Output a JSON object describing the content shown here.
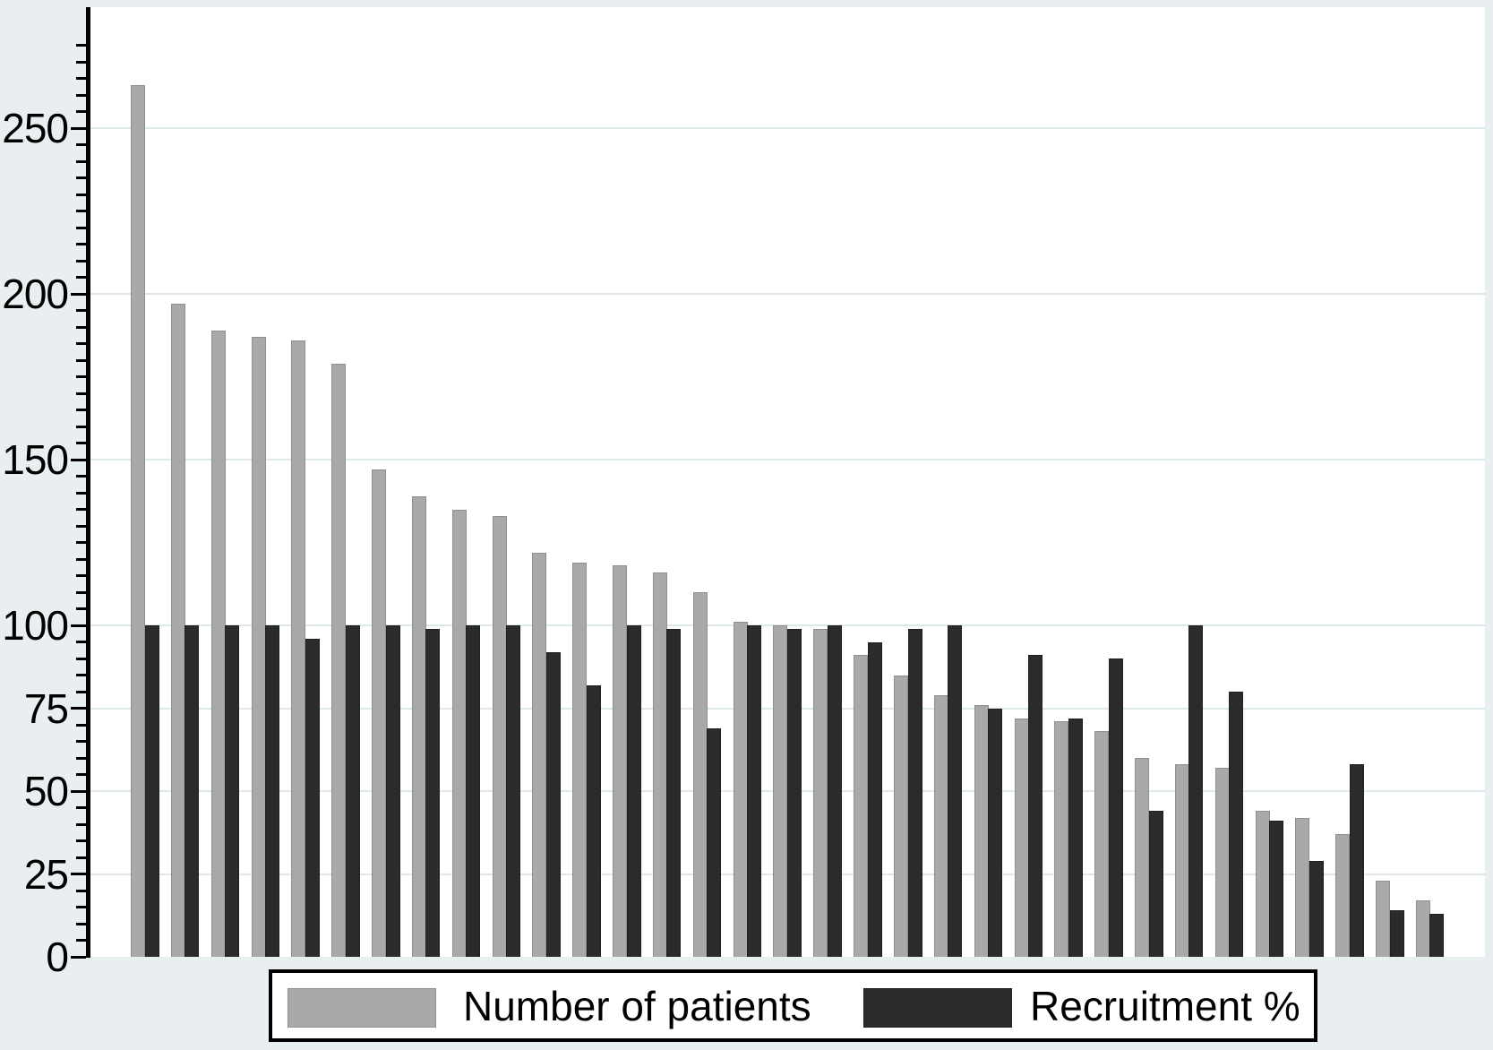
{
  "figure": {
    "background_color": "#e9eff1",
    "plot_background_color": "#ffffff",
    "grid_color": "#dce8ea",
    "axis_color": "#000000"
  },
  "chart_data": {
    "type": "bar",
    "title": "",
    "xlabel": "",
    "ylabel": "",
    "grid": true,
    "legend_position": "bottom",
    "y_axis": {
      "major_ticks": [
        0,
        25,
        50,
        75,
        100,
        150,
        200,
        250
      ],
      "minor_tick_interval": 5,
      "minor_tick_max": 275,
      "range": [
        0,
        286
      ]
    },
    "series": [
      {
        "name": "Number of patients",
        "color": "#a9a9a9",
        "values": [
          263,
          197,
          189,
          187,
          186,
          179,
          147,
          139,
          135,
          133,
          122,
          119,
          118,
          116,
          110,
          101,
          100,
          99,
          91,
          85,
          79,
          76,
          72,
          71,
          68,
          60,
          58,
          57,
          44,
          42,
          37,
          23,
          17
        ]
      },
      {
        "name": "Recruitment %",
        "color": "#2b2b2b",
        "values": [
          100,
          100,
          100,
          100,
          96,
          100,
          100,
          99,
          100,
          100,
          92,
          82,
          100,
          99,
          69,
          100,
          99,
          100,
          95,
          99,
          100,
          75,
          91,
          72,
          90,
          44,
          100,
          80,
          41,
          29,
          58,
          14,
          13
        ]
      }
    ]
  }
}
